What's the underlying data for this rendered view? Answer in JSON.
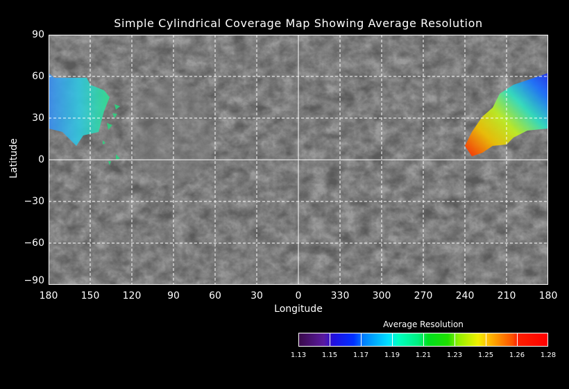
{
  "title": "Simple Cylindrical Coverage Map Showing Average Resolution",
  "x_axis": {
    "label": "Longitude",
    "ticks": [
      "180",
      "150",
      "120",
      "90",
      "60",
      "30",
      "0",
      "330",
      "300",
      "270",
      "240",
      "210",
      "180"
    ]
  },
  "y_axis": {
    "label": "Latitude",
    "ticks": [
      "90",
      "60",
      "30",
      "0",
      "−30",
      "−60",
      "−90"
    ]
  },
  "colorbar": {
    "title": "Average Resolution",
    "ticks": [
      "1.13",
      "1.15",
      "1.17",
      "1.19",
      "1.21",
      "1.23",
      "1.25",
      "1.26",
      "1.28"
    ]
  },
  "colors": {
    "background": "#000000",
    "grid": "#ffffff",
    "basemap": "#555555"
  }
}
